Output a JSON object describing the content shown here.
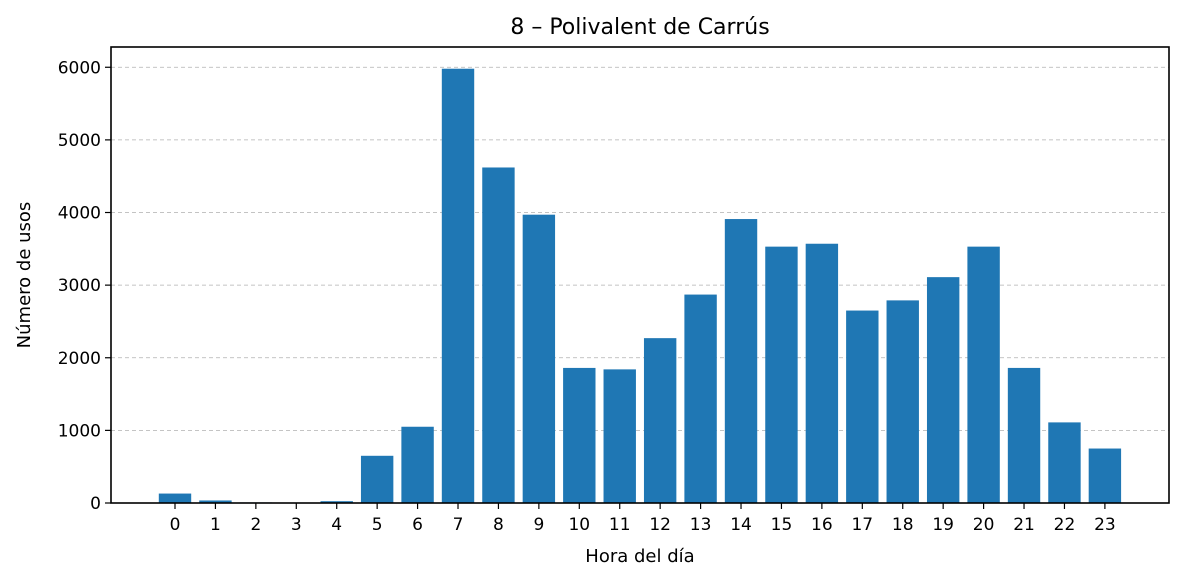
{
  "chart_data": {
    "type": "bar",
    "title": "8 – Polivalent de Carrús",
    "xlabel": "Hora del día",
    "ylabel": "Número de usos",
    "categories": [
      "0",
      "1",
      "2",
      "3",
      "4",
      "5",
      "6",
      "7",
      "8",
      "9",
      "10",
      "11",
      "12",
      "13",
      "14",
      "15",
      "16",
      "17",
      "18",
      "19",
      "20",
      "21",
      "22",
      "23"
    ],
    "values": [
      130,
      35,
      8,
      5,
      25,
      650,
      1050,
      5980,
      4620,
      3970,
      1860,
      1840,
      2270,
      2870,
      3910,
      3530,
      3570,
      2650,
      2790,
      3110,
      3530,
      1860,
      1110,
      750
    ],
    "yticks": [
      0,
      1000,
      2000,
      3000,
      4000,
      5000,
      6000
    ],
    "ylim": [
      0,
      6279
    ],
    "grid": "y-dashed",
    "bar_color": "#1f77b4"
  }
}
